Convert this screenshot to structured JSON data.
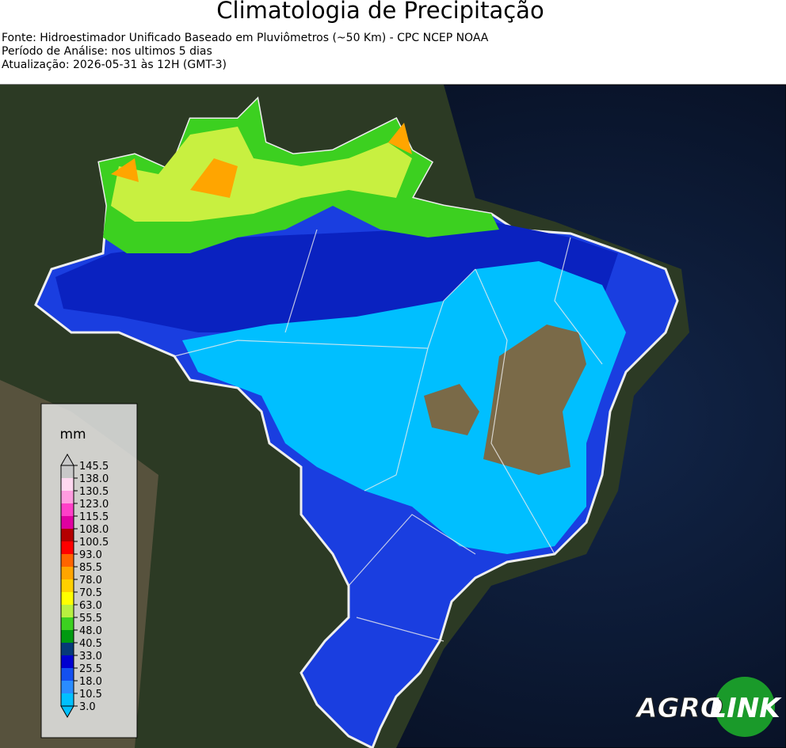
{
  "header": {
    "title": "Climatologia de Precipitação",
    "lines": [
      "Fonte: Hidroestimador Unificado Baseado em Pluviômetros (~50 Km) - CPC NCEP NOAA",
      "Período de Análise: nos ultimos 5 dias",
      "Atualização: 2026-05-31 às 12H (GMT-3)"
    ]
  },
  "legend": {
    "unit": "mm",
    "ticks": [
      {
        "value": 3,
        "label": "3.0"
      },
      10.5,
      {
        "value": 18,
        "label": "18.0"
      },
      25.5,
      {
        "value": 33,
        "label": "33.0"
      },
      40.5,
      {
        "value": 48,
        "label": "48.0"
      },
      55.5,
      {
        "value": 63,
        "label": "63.0"
      },
      70.5,
      {
        "value": 78,
        "label": "78.0"
      },
      85.5,
      {
        "value": 93,
        "label": "93.0"
      },
      100.5,
      {
        "value": 108,
        "label": "108.0"
      },
      115.5,
      {
        "value": 123,
        "label": "123.0"
      },
      130.5,
      {
        "value": 138,
        "label": "138.0"
      },
      145.5
    ],
    "colors": [
      "#00c0ff",
      "#2a8cff",
      "#1450f0",
      "#0000d0",
      "#063a78",
      "#009a10",
      "#3cd020",
      "#b8f040",
      "#ffff00",
      "#ffd000",
      "#ffa500",
      "#ff6400",
      "#ff0000",
      "#b40000",
      "#e000a0",
      "#ff40c8",
      "#ff9ce0",
      "#ffd8f0",
      "#c8c8c8"
    ]
  },
  "logo": {
    "left": "AGRO",
    "right": "LINK"
  }
}
